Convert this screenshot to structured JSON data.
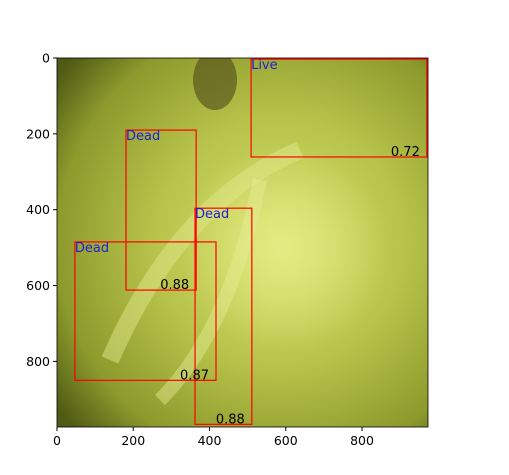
{
  "chart_data": {
    "type": "detection",
    "xlim": [
      0,
      973
    ],
    "ylim": [
      973,
      0
    ],
    "xticks": [
      0,
      200,
      400,
      600,
      800
    ],
    "yticks": [
      0,
      200,
      400,
      600,
      800
    ],
    "box_color": "#ff0000",
    "label_color": "#2020d0",
    "score_color": "#000000",
    "boxes": [
      {
        "label": "Live",
        "score": 0.72,
        "x": [
          509,
          970
        ],
        "y": [
          3,
          261
        ]
      },
      {
        "label": "Dead",
        "score": 0.88,
        "x": [
          181,
          365
        ],
        "y": [
          190,
          612
        ]
      },
      {
        "label": "Dead",
        "score": 0.88,
        "x": [
          362,
          511
        ],
        "y": [
          396,
          966
        ]
      },
      {
        "label": "Dead",
        "score": 0.87,
        "x": [
          47,
          417
        ],
        "y": [
          485,
          850
        ]
      }
    ]
  }
}
